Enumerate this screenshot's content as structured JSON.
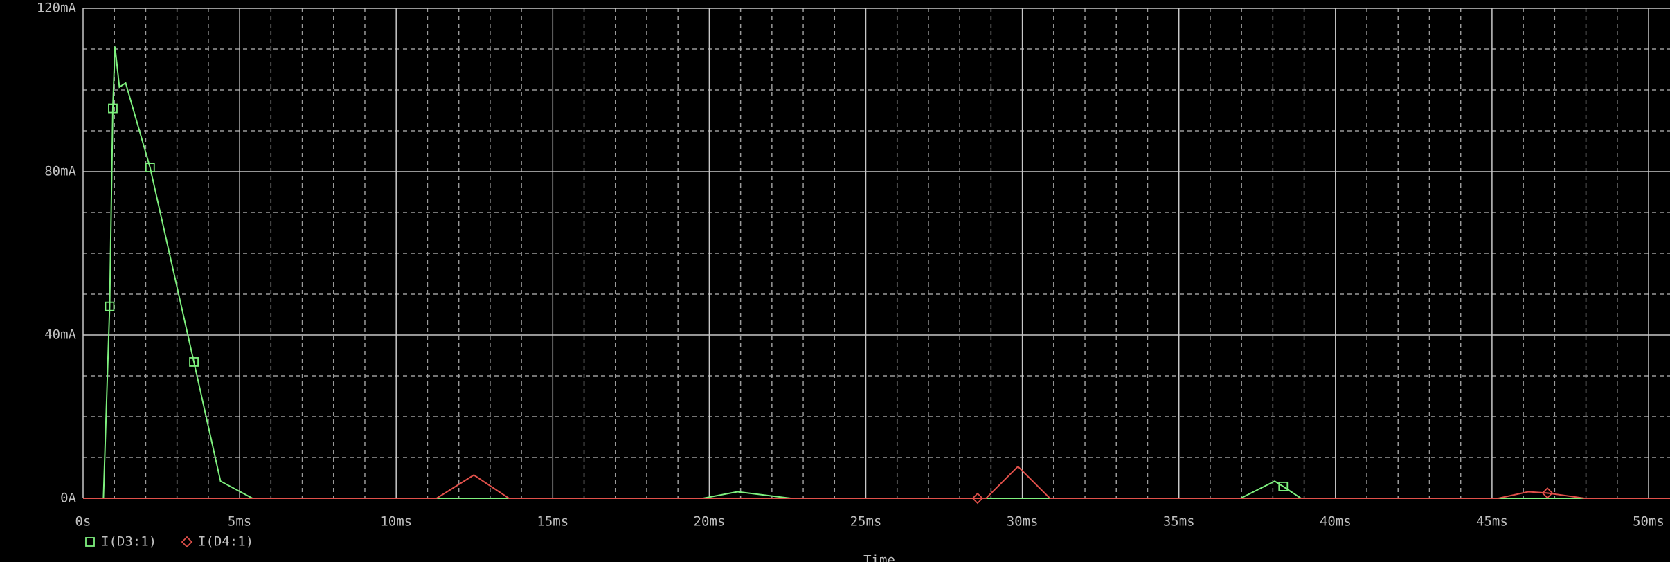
{
  "chart_data": {
    "type": "line",
    "x_label": "Time",
    "xlim": [
      0,
      50.7
    ],
    "ylim": [
      0,
      120
    ],
    "xticks": [
      {
        "value": 0,
        "label": "0s"
      },
      {
        "value": 5,
        "label": "5ms"
      },
      {
        "value": 10,
        "label": "10ms"
      },
      {
        "value": 15,
        "label": "15ms"
      },
      {
        "value": 20,
        "label": "20ms"
      },
      {
        "value": 25,
        "label": "25ms"
      },
      {
        "value": 30,
        "label": "30ms"
      },
      {
        "value": 35,
        "label": "35ms"
      },
      {
        "value": 40,
        "label": "40ms"
      },
      {
        "value": 45,
        "label": "45ms"
      },
      {
        "value": 50,
        "label": "50ms"
      }
    ],
    "yticks": [
      {
        "value": 0,
        "label": "0A"
      },
      {
        "value": 40,
        "label": "40mA"
      },
      {
        "value": 80,
        "label": "80mA"
      },
      {
        "value": 120,
        "label": "120mA"
      }
    ],
    "x_minor_ticks": [
      1,
      2,
      3,
      4,
      6,
      7,
      8,
      9,
      11,
      12,
      13,
      14,
      16,
      17,
      18,
      19,
      21,
      22,
      23,
      24,
      26,
      27,
      28,
      29,
      31,
      32,
      33,
      34,
      36,
      37,
      38,
      39,
      41,
      42,
      43,
      44,
      46,
      47,
      48,
      49
    ],
    "y_minor_ticks": [
      10,
      20,
      30,
      50,
      60,
      70,
      90,
      100,
      110
    ],
    "grid": true,
    "background": "#000000",
    "series": [
      {
        "name": "I(D3:1)",
        "color": "#7ef07e",
        "marker": "square",
        "x": [
          0,
          0.65,
          0.85,
          0.95,
          1.02,
          1.16,
          1.36,
          2.14,
          3.54,
          4.39,
          5.41,
          19.8,
          20.9,
          22.6,
          36.97,
          38.06,
          38.33,
          38.9,
          50.7
        ],
        "values": [
          0,
          0,
          47,
          95.5,
          110.6,
          100.7,
          101.7,
          81,
          33.4,
          4.2,
          0,
          0,
          1.6,
          0,
          0,
          4.2,
          2.9,
          0,
          0
        ],
        "marker_points": [
          2,
          3,
          7,
          8,
          16
        ]
      },
      {
        "name": "I(D4:1)",
        "color": "#e0504a",
        "marker": "diamond",
        "x": [
          0,
          11.29,
          12.48,
          13.6,
          28.57,
          28.84,
          29.86,
          30.88,
          45.2,
          46.16,
          46.77,
          47.96,
          50.7
        ],
        "values": [
          0,
          0,
          5.7,
          0,
          0,
          0,
          7.8,
          0,
          0,
          1.6,
          1.3,
          0,
          0
        ],
        "marker_points": [
          4,
          10
        ]
      }
    ]
  }
}
